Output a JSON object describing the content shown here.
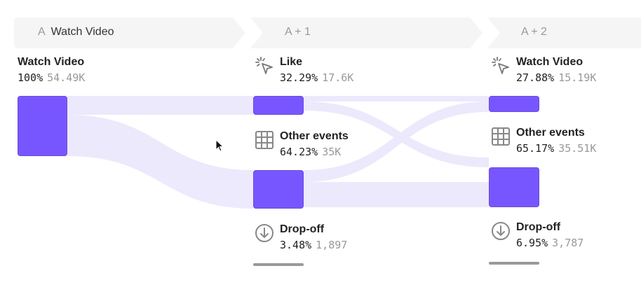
{
  "columns": [
    {
      "prefix": "A",
      "title": "Watch Video"
    },
    {
      "prefix": "",
      "title": "A + 1"
    },
    {
      "prefix": "",
      "title": "A + 2"
    }
  ],
  "nodes": {
    "c0_watch": {
      "name": "Watch Video",
      "pct": "100%",
      "count": "54.49K",
      "icon": "none"
    },
    "c1_like": {
      "name": "Like",
      "pct": "32.29%",
      "count": "17.6K",
      "icon": "click-icon"
    },
    "c1_other": {
      "name": "Other events",
      "pct": "64.23%",
      "count": "35K",
      "icon": "grid-icon"
    },
    "c1_drop": {
      "name": "Drop-off",
      "pct": "3.48%",
      "count": "1,897",
      "icon": "arrow-down-circle-icon"
    },
    "c2_watch": {
      "name": "Watch Video",
      "pct": "27.88%",
      "count": "15.19K",
      "icon": "click-icon"
    },
    "c2_other": {
      "name": "Other events",
      "pct": "65.17%",
      "count": "35.51K",
      "icon": "grid-icon"
    },
    "c2_drop": {
      "name": "Drop-off",
      "pct": "6.95%",
      "count": "3,787",
      "icon": "arrow-down-circle-icon"
    }
  },
  "colors": {
    "node": "#7856ff",
    "flow": "#e9e6fc",
    "tab": "#f5f5f5",
    "dropbar": "#999999"
  }
}
